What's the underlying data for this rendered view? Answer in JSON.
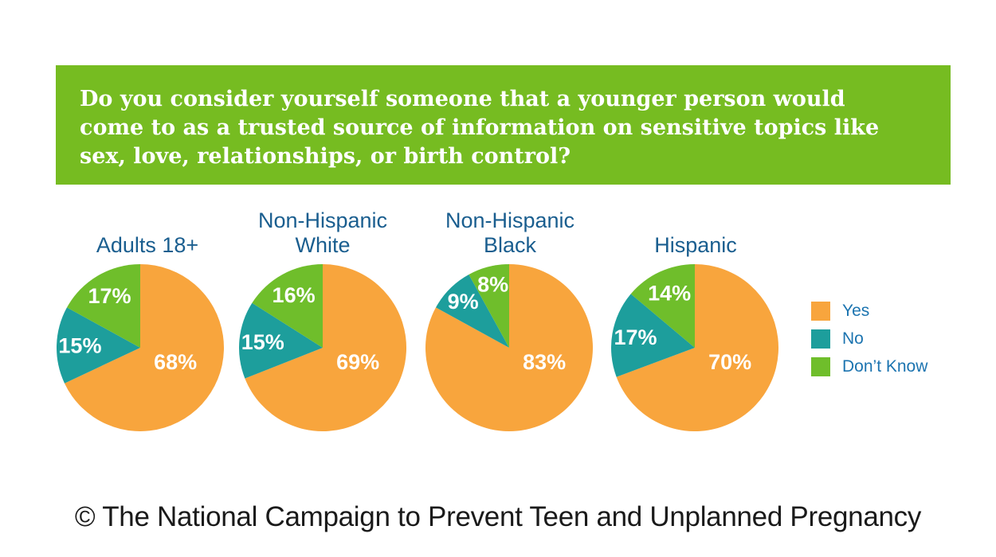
{
  "banner": {
    "bg_color": "#76BC21",
    "text_color": "#FFFFFF",
    "lines": [
      "Do you consider yourself someone that a younger person would",
      "come to as a trusted source of information on sensitive topics like",
      "sex, love, relationships, or birth control?"
    ],
    "full_text": "Do you consider yourself someone that a younger person would come to as a trusted source of information on sensitive topics like sex, love, relationships, or birth control?"
  },
  "legend": {
    "items": [
      {
        "label": "Yes",
        "color": "#F8A53D"
      },
      {
        "label": "No",
        "color": "#1D9E9C"
      },
      {
        "label": "Don’t Know",
        "color": "#6FBE2B"
      }
    ],
    "text_color": "#1C74B0"
  },
  "chart_data": {
    "type": "pie",
    "title": "Do you consider yourself someone that a younger person would come to as a trusted source of information on sensitive topics like sex, love, relationships, or birth control?",
    "categories": [
      "Yes",
      "No",
      "Don’t Know"
    ],
    "colors": [
      "#F8A53D",
      "#1D9E9C",
      "#6FBE2B"
    ],
    "legend_position": "right",
    "value_suffix": "%",
    "charts": [
      {
        "title": "Adults 18+",
        "values": [
          68,
          15,
          17
        ]
      },
      {
        "title": "Non-Hispanic White",
        "values": [
          69,
          15,
          16
        ]
      },
      {
        "title": "Non-Hispanic Black",
        "values": [
          83,
          9,
          8
        ]
      },
      {
        "title": "Hispanic",
        "values": [
          70,
          17,
          14
        ]
      }
    ],
    "title_color": "#1A5E8F",
    "slice_label_color": "#FFFFFF"
  },
  "footer": {
    "text": "© The National Campaign to Prevent Teen and Unplanned Pregnancy"
  }
}
